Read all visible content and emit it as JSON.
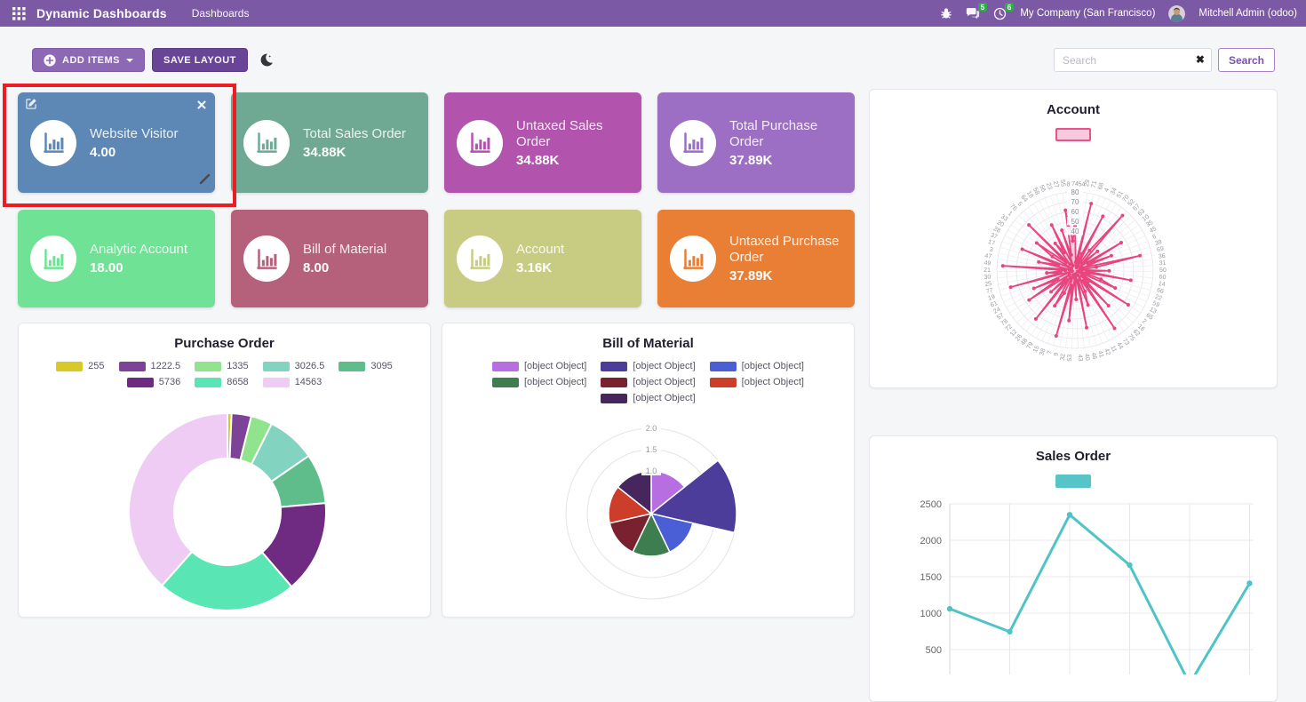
{
  "navbar": {
    "app_title": "Dynamic Dashboards",
    "menu_item": "Dashboards",
    "messages_badge": "5",
    "activities_badge": "6",
    "company": "My Company (San Francisco)",
    "user": "Mitchell Admin (odoo)"
  },
  "toolbar": {
    "add_items": "ADD ITEMS",
    "save_layout": "SAVE LAYOUT",
    "search_placeholder": "Search",
    "search_button": "Search",
    "clear_icon": "✖"
  },
  "annotation_highlight": {
    "target": "Website Visitor tile",
    "color": "#ed1c24"
  },
  "tiles": [
    {
      "title": "Website Visitor",
      "value": "4.00",
      "color": "#5d87b5"
    },
    {
      "title": "Total Sales Order",
      "value": "34.88K",
      "color": "#6fa893"
    },
    {
      "title": "Untaxed Sales Order",
      "value": "34.88K",
      "color": "#b253ae"
    },
    {
      "title": "Total Purchase Order",
      "value": "37.89K",
      "color": "#9c6fc4"
    },
    {
      "title": "Analytic Account",
      "value": "18.00",
      "color": "#6fe295"
    },
    {
      "title": "Bill of Material",
      "value": "8.00",
      "color": "#b5617c"
    },
    {
      "title": "Account",
      "value": "3.16K",
      "color": "#c7cc82"
    },
    {
      "title": "Untaxed Purchase Order",
      "value": "37.89K",
      "color": "#e87f35"
    }
  ],
  "chart_data": [
    {
      "id": "purchase_order",
      "type": "pie",
      "subtype": "doughnut",
      "title": "Purchase Order",
      "legend_position": "top",
      "labels": [
        "255",
        "1222.5",
        "1335",
        "3026.5",
        "3095",
        "5736",
        "8658",
        "14563"
      ],
      "values": [
        255,
        1222.5,
        1335,
        3026.5,
        3095,
        5736,
        8658,
        14563
      ],
      "colors": [
        "#d9c927",
        "#7d4397",
        "#90e48d",
        "#82d4c0",
        "#5fbc8b",
        "#6f2b82",
        "#59e6b4",
        "#eeccf4"
      ]
    },
    {
      "id": "bill_of_material",
      "type": "pie",
      "subtype": "polarArea",
      "title": "Bill of Material",
      "legend_position": "top",
      "labels": [
        "[object Object]",
        "[object Object]",
        "[object Object]",
        "[object Object]",
        "[object Object]",
        "[object Object]",
        "[object Object]"
      ],
      "values": [
        1,
        2,
        1,
        1,
        1,
        1,
        1
      ],
      "colors": [
        "#b76ee0",
        "#4b3d99",
        "#4a5fd6",
        "#3e7d4f",
        "#7a212f",
        "#cc3d2a",
        "#46265c"
      ],
      "r_ticks": [
        1.0,
        1.5,
        2.0
      ],
      "r_max": 2.0,
      "grid": true
    },
    {
      "id": "account",
      "type": "radar",
      "title": "Account",
      "color": "#e8457e",
      "fill": "rgba(232,69,126,0.22)",
      "legend_swatch": {
        "fill": "#f8c9dc",
        "border": "#e8538a"
      },
      "r_ticks": [
        40,
        50,
        60,
        70,
        80
      ],
      "r_max": 80,
      "grid": true,
      "labels": [
        74,
        54,
        29,
        71,
        68,
        4,
        34,
        51,
        70,
        52,
        67,
        63,
        10,
        35,
        45,
        6,
        39,
        69,
        36,
        31,
        50,
        60,
        14,
        66,
        22,
        59,
        13,
        65,
        2,
        16,
        62,
        75,
        73,
        44,
        11,
        42,
        41,
        46,
        40,
        43,
        53,
        32,
        9,
        7,
        38,
        15,
        79,
        48,
        26,
        12,
        72,
        78,
        57,
        24,
        61,
        19,
        77,
        25,
        30,
        21,
        49,
        47,
        3,
        17,
        37,
        28,
        20,
        33,
        1,
        76,
        5,
        64,
        18,
        58,
        56,
        23,
        27,
        55,
        8
      ],
      "values": [
        45,
        8,
        12,
        70,
        5,
        18,
        62,
        3,
        25,
        74,
        10,
        30,
        6,
        55,
        15,
        40,
        8,
        68,
        22,
        5,
        35,
        12,
        58,
        7,
        28,
        45,
        3,
        65,
        18,
        9,
        50,
        14,
        72,
        6,
        24,
        38,
        11,
        60,
        4,
        30,
        8,
        52,
        16,
        70,
        5,
        26,
        42,
        9,
        64,
        13,
        33,
        7,
        56,
        20,
        46,
        3,
        68,
        15,
        29,
        10,
        74,
        6,
        38,
        18,
        58,
        4,
        27,
        48,
        12,
        66,
        8,
        34,
        21,
        52,
        5,
        43,
        16,
        62,
        30
      ]
    },
    {
      "id": "sales_order",
      "type": "line",
      "title": "Sales Order",
      "color": "#4fc4c6",
      "legend_swatch": {
        "fill": "#57c5c8"
      },
      "x": [
        1,
        2,
        3,
        4,
        5,
        6
      ],
      "values": [
        1060,
        745,
        2350,
        1660,
        30,
        1410
      ],
      "y_ticks": [
        500,
        1000,
        1500,
        2000,
        2500
      ],
      "ylim": [
        0,
        2500
      ],
      "grid": true
    }
  ]
}
